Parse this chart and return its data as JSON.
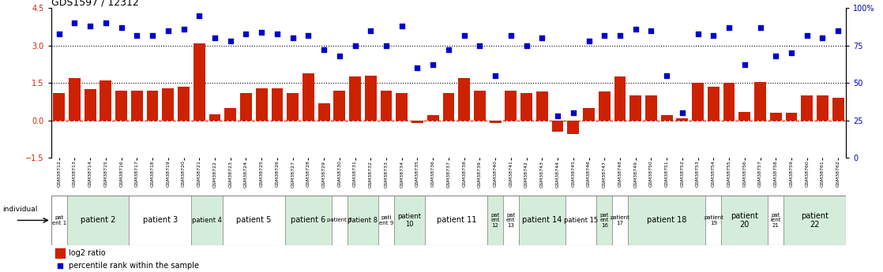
{
  "title": "GDS1597 / 12312",
  "samples": [
    "GSM38712",
    "GSM38713",
    "GSM38714",
    "GSM38715",
    "GSM38716",
    "GSM38717",
    "GSM38718",
    "GSM38719",
    "GSM38720",
    "GSM38721",
    "GSM38722",
    "GSM38723",
    "GSM38724",
    "GSM38725",
    "GSM38726",
    "GSM38727",
    "GSM38728",
    "GSM38729",
    "GSM38730",
    "GSM38731",
    "GSM38732",
    "GSM38733",
    "GSM38734",
    "GSM38735",
    "GSM38736",
    "GSM38737",
    "GSM38738",
    "GSM38739",
    "GSM38740",
    "GSM38741",
    "GSM38742",
    "GSM38743",
    "GSM38744",
    "GSM38745",
    "GSM38746",
    "GSM38747",
    "GSM38748",
    "GSM38749",
    "GSM38750",
    "GSM38751",
    "GSM38752",
    "GSM38753",
    "GSM38754",
    "GSM38755",
    "GSM38756",
    "GSM38757",
    "GSM38758",
    "GSM38759",
    "GSM38760",
    "GSM38761",
    "GSM38762"
  ],
  "log2_ratio": [
    1.1,
    1.7,
    1.25,
    1.6,
    1.2,
    1.2,
    1.2,
    1.3,
    1.35,
    3.1,
    0.25,
    0.5,
    1.1,
    1.3,
    1.3,
    1.1,
    1.9,
    0.7,
    1.2,
    1.75,
    1.8,
    1.2,
    1.1,
    -0.1,
    0.2,
    1.1,
    1.7,
    1.2,
    -0.1,
    1.2,
    1.1,
    1.15,
    -0.45,
    -0.55,
    0.5,
    1.15,
    1.75,
    1.0,
    1.0,
    0.2,
    0.1,
    1.5,
    1.35,
    1.5,
    0.35,
    1.55,
    0.3,
    0.3,
    1.0,
    1.0,
    0.9
  ],
  "percentile": [
    83,
    90,
    88,
    90,
    87,
    82,
    82,
    85,
    86,
    95,
    80,
    78,
    83,
    84,
    83,
    80,
    82,
    72,
    68,
    75,
    85,
    75,
    88,
    60,
    62,
    72,
    82,
    75,
    55,
    82,
    75,
    80,
    28,
    30,
    78,
    82,
    82,
    86,
    85,
    55,
    30,
    83,
    82,
    87,
    62,
    87,
    68,
    70,
    82,
    80,
    85
  ],
  "patients": [
    {
      "label": "pat\nent 1",
      "start": 0,
      "end": 1,
      "color": "#ffffff"
    },
    {
      "label": "patient 2",
      "start": 1,
      "end": 5,
      "color": "#d4edda"
    },
    {
      "label": "patient 3",
      "start": 5,
      "end": 9,
      "color": "#ffffff"
    },
    {
      "label": "patient 4",
      "start": 9,
      "end": 11,
      "color": "#d4edda"
    },
    {
      "label": "patient 5",
      "start": 11,
      "end": 15,
      "color": "#ffffff"
    },
    {
      "label": "patient 6",
      "start": 15,
      "end": 18,
      "color": "#d4edda"
    },
    {
      "label": "patient 7",
      "start": 18,
      "end": 19,
      "color": "#ffffff"
    },
    {
      "label": "patient 8",
      "start": 19,
      "end": 21,
      "color": "#d4edda"
    },
    {
      "label": "pati\nent 9",
      "start": 21,
      "end": 22,
      "color": "#ffffff"
    },
    {
      "label": "patient\n10",
      "start": 22,
      "end": 24,
      "color": "#d4edda"
    },
    {
      "label": "patient 11",
      "start": 24,
      "end": 28,
      "color": "#ffffff"
    },
    {
      "label": "pat\nent\n12",
      "start": 28,
      "end": 29,
      "color": "#d4edda"
    },
    {
      "label": "pat\nent\n13",
      "start": 29,
      "end": 30,
      "color": "#ffffff"
    },
    {
      "label": "patient 14",
      "start": 30,
      "end": 33,
      "color": "#d4edda"
    },
    {
      "label": "patient 15",
      "start": 33,
      "end": 35,
      "color": "#ffffff"
    },
    {
      "label": "pat\nent\n16",
      "start": 35,
      "end": 36,
      "color": "#d4edda"
    },
    {
      "label": "patient\n17",
      "start": 36,
      "end": 37,
      "color": "#ffffff"
    },
    {
      "label": "patient 18",
      "start": 37,
      "end": 42,
      "color": "#d4edda"
    },
    {
      "label": "patient\n19",
      "start": 42,
      "end": 43,
      "color": "#ffffff"
    },
    {
      "label": "patient\n20",
      "start": 43,
      "end": 46,
      "color": "#d4edda"
    },
    {
      "label": "pat\nient\n21",
      "start": 46,
      "end": 47,
      "color": "#ffffff"
    },
    {
      "label": "patient\n22",
      "start": 47,
      "end": 51,
      "color": "#d4edda"
    }
  ],
  "ylim_left": [
    -1.5,
    4.5
  ],
  "ylim_right": [
    0,
    100
  ],
  "yticks_left": [
    -1.5,
    0,
    1.5,
    3.0,
    4.5
  ],
  "yticks_right": [
    0,
    25,
    50,
    75,
    100
  ],
  "bar_color": "#cc2200",
  "dot_color": "#0000cc",
  "hline_y_left": [
    1.5,
    3.0
  ],
  "bg_color": "#ffffff"
}
